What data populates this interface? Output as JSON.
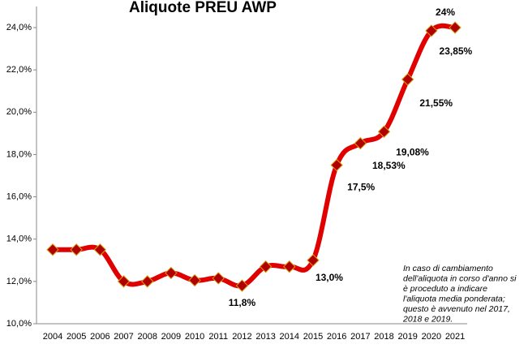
{
  "chart_data": {
    "type": "line",
    "title": "Aliquote PREU AWP",
    "categories": [
      "2004",
      "2005",
      "2006",
      "2007",
      "2008",
      "2009",
      "2010",
      "2011",
      "2012",
      "2013",
      "2014",
      "2015",
      "2016",
      "2017",
      "2018",
      "2019",
      "2020",
      "2021"
    ],
    "series": [
      {
        "name": "Aliquota PREU AWP",
        "color": "#e00000",
        "values": [
          13.5,
          13.5,
          13.5,
          12.0,
          12.0,
          12.4,
          12.05,
          12.15,
          11.8,
          12.7,
          12.7,
          13.0,
          17.5,
          18.53,
          19.08,
          21.55,
          23.85,
          24.0
        ],
        "value_labels": [
          null,
          null,
          null,
          null,
          null,
          null,
          null,
          null,
          "11,8%",
          null,
          null,
          "13,0%",
          "17,5%",
          "18,53%",
          "19,08%",
          "21,55%",
          "23,85%",
          "24%"
        ]
      }
    ],
    "marker_color": "#b00000",
    "ylim": [
      10,
      25
    ],
    "yticks": [
      {
        "value": 10,
        "label": "10,0%"
      },
      {
        "value": 12,
        "label": "12,0%"
      },
      {
        "value": 14,
        "label": "14,0%"
      },
      {
        "value": 16,
        "label": "16,0%"
      },
      {
        "value": 18,
        "label": "18,0%"
      },
      {
        "value": 20,
        "label": "20,0%"
      },
      {
        "value": 22,
        "label": "22,0%"
      },
      {
        "value": 24,
        "label": "24,0%"
      }
    ],
    "annotation": [
      "In caso di cambiamento",
      "dell'aliquota in corso d'anno si",
      "è proceduto a indicare",
      "l'aliquota media ponderata;",
      "questo è avvenuto nel 2017,",
      "2018 e 2019."
    ]
  }
}
